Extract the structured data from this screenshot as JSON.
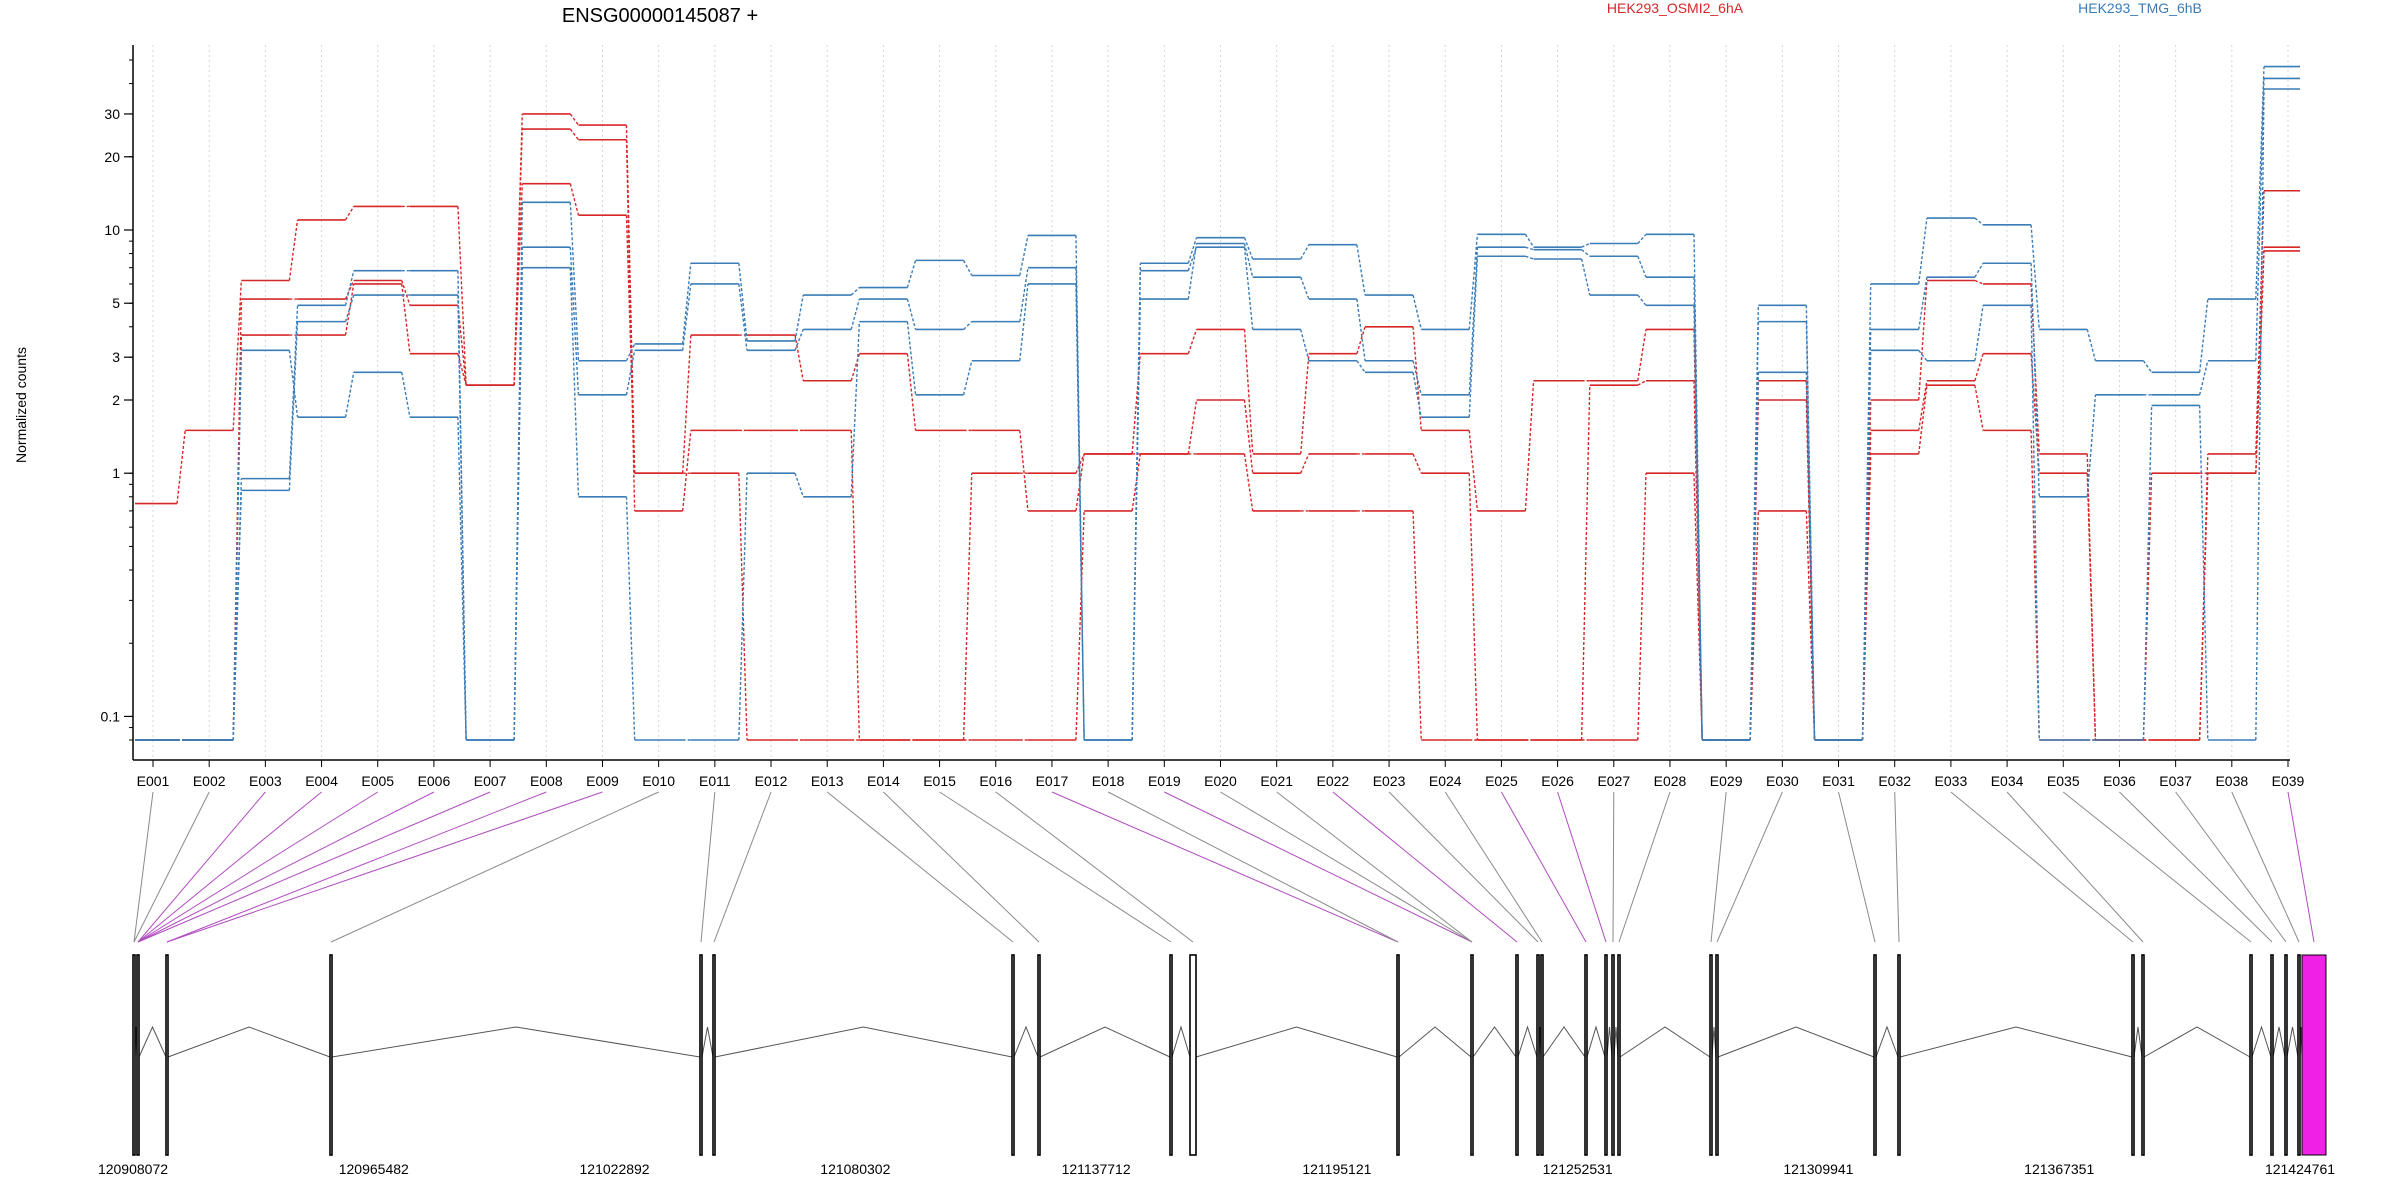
{
  "chart_data": {
    "type": "line",
    "title": "ENSG00000145087 +",
    "ylabel": "Normalized counts",
    "yscale": "log",
    "ylim": [
      0.08,
      50
    ],
    "yticks": [
      0.1,
      1,
      2,
      3,
      5,
      10,
      20,
      30
    ],
    "ytick_labels": [
      "0.1",
      "1",
      "2",
      "3",
      "5",
      "10",
      "20",
      "30"
    ],
    "grid": "vertical-dotted",
    "legend": [
      {
        "name": "HEK293_OSMI2_6hA",
        "color": "#d62728"
      },
      {
        "name": "HEK293_TMG_6hB",
        "color": "#3a7cb8"
      }
    ],
    "exons": [
      "E001",
      "E002",
      "E003",
      "E004",
      "E005",
      "E006",
      "E007",
      "E008",
      "E009",
      "E010",
      "E011",
      "E012",
      "E013",
      "E014",
      "E015",
      "E016",
      "E017",
      "E018",
      "E019",
      "E020",
      "E021",
      "E022",
      "E023",
      "E024",
      "E025",
      "E026",
      "E027",
      "E028",
      "E029",
      "E030",
      "E031",
      "E032",
      "E033",
      "E034",
      "E035",
      "E036",
      "E037",
      "E038",
      "E039"
    ],
    "series": [
      {
        "group": "HEK293_OSMI2_6hA",
        "color": "#d62728",
        "values": [
          0.75,
          1.5,
          6.2,
          11,
          12.5,
          12.5,
          2.3,
          30,
          27,
          1,
          3.7,
          3.7,
          2.4,
          3.1,
          1.5,
          1.5,
          0.7,
          1.2,
          3.1,
          3.9,
          1.2,
          3.1,
          4,
          1.5,
          0.7,
          2.4,
          2.4,
          3.9,
          0.08,
          0.7,
          0.08,
          2,
          6.2,
          6,
          1.2,
          0.08,
          0.08,
          1.2,
          14.5
        ]
      },
      {
        "group": "HEK293_OSMI2_6hA",
        "color": "#d62728",
        "values": [
          0.08,
          0.08,
          5.2,
          5.2,
          6.2,
          4.9,
          2.3,
          26,
          23.5,
          0.7,
          1.5,
          1.5,
          1.5,
          0.08,
          0.08,
          0.08,
          0.08,
          0.7,
          1.2,
          2,
          1,
          1.2,
          1.2,
          1,
          0.08,
          0.08,
          2.3,
          2.4,
          0.08,
          2,
          0.08,
          1.5,
          2.4,
          3.1,
          1,
          0.08,
          1,
          1,
          8.5
        ]
      },
      {
        "group": "HEK293_OSMI2_6hA",
        "color": "#d62728",
        "values": [
          0.08,
          0.08,
          3.7,
          3.7,
          6,
          3.1,
          2.3,
          15.5,
          11.5,
          1,
          1,
          0.08,
          0.08,
          0.08,
          0.08,
          1,
          1,
          1.2,
          1.2,
          1.2,
          0.7,
          0.7,
          0.7,
          0.08,
          0.08,
          0.08,
          0.08,
          1,
          0.08,
          2.4,
          0.08,
          1.2,
          2.3,
          1.5,
          0.08,
          0.08,
          0.08,
          1,
          8.2
        ]
      },
      {
        "group": "HEK293_TMG_6hB",
        "color": "#3a7cb8",
        "values": [
          0.08,
          0.08,
          0.95,
          4.9,
          6.8,
          6.8,
          0.08,
          13,
          2.9,
          3.4,
          7.3,
          3.5,
          5.4,
          5.8,
          7.5,
          6.5,
          9.5,
          0.08,
          7.3,
          9.3,
          7.6,
          8.7,
          5.4,
          3.9,
          9.6,
          8.5,
          8.8,
          9.6,
          0.08,
          4.9,
          0.08,
          6,
          11.2,
          10.5,
          3.9,
          2.9,
          2.6,
          5.2,
          47
        ]
      },
      {
        "group": "HEK293_TMG_6hB",
        "color": "#3a7cb8",
        "values": [
          0.08,
          0.08,
          0.85,
          4.2,
          5.4,
          5.4,
          0.08,
          8.5,
          2.1,
          3.2,
          6,
          3.2,
          3.9,
          5.2,
          3.9,
          4.2,
          7,
          0.08,
          5.2,
          8.8,
          6.4,
          5.2,
          2.9,
          2.1,
          8.5,
          8.3,
          7.8,
          6.4,
          0.08,
          4.2,
          0.08,
          3.9,
          6.4,
          7.3,
          0.8,
          2.1,
          2.1,
          2.9,
          42
        ]
      },
      {
        "group": "HEK293_TMG_6hB",
        "color": "#3a7cb8",
        "values": [
          0.08,
          0.08,
          3.2,
          1.7,
          2.6,
          1.7,
          0.08,
          7,
          0.8,
          0.08,
          0.08,
          1,
          0.8,
          4.2,
          2.1,
          2.9,
          6,
          0.08,
          6.8,
          8.5,
          3.9,
          2.9,
          2.6,
          1.7,
          7.8,
          7.6,
          5.4,
          4.9,
          0.08,
          2.6,
          0.08,
          3.2,
          2.9,
          4.9,
          0.08,
          0.08,
          1.9,
          0.08,
          38
        ]
      }
    ],
    "genome": {
      "tick_labels": [
        "120908072",
        "120965482",
        "121022892",
        "121080302",
        "121137712",
        "121195121",
        "121252531",
        "121309941",
        "121367351",
        "121424761"
      ]
    }
  }
}
